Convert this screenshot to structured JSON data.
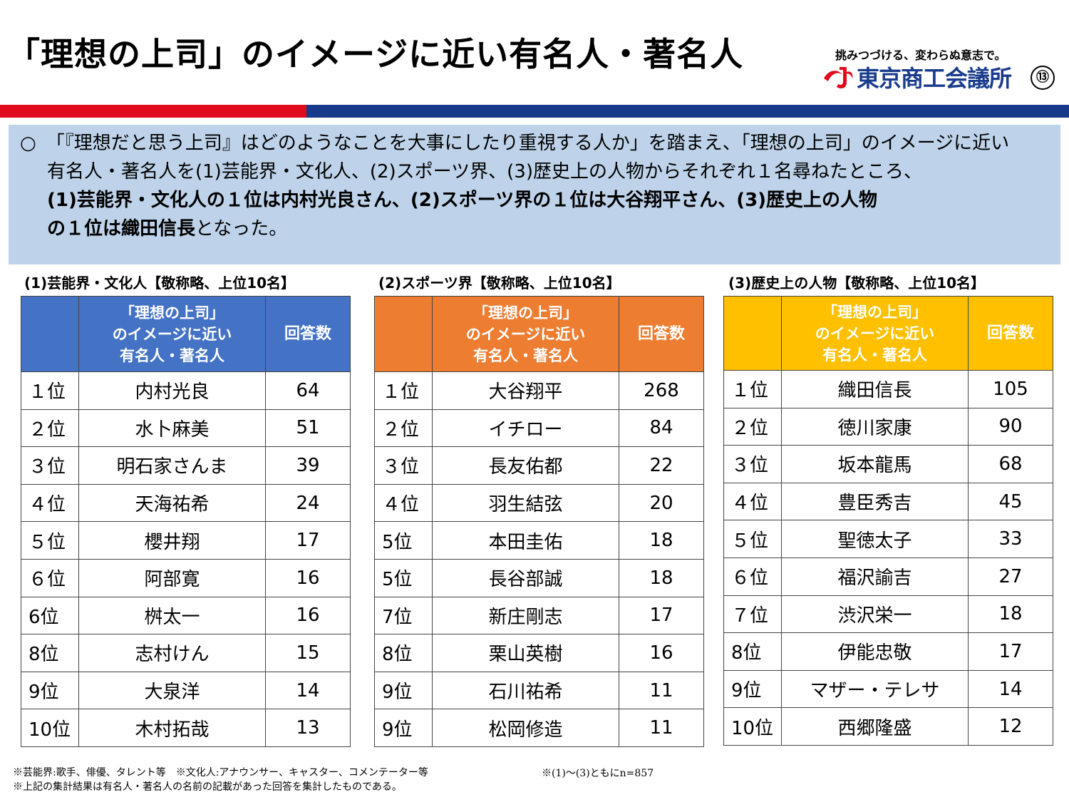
{
  "title": "「理想の上司」のイメージに近い有名人・著名人",
  "tagline": "挑みつづける、変わらぬ意志で。",
  "logo_text": "東京商工会議所",
  "page_number": "⑬",
  "colors": {
    "red": "#e00c1e",
    "blue": "#183a8a",
    "t1": "#4472c4",
    "t2": "#ed7d31",
    "t3": "#ffc000",
    "summary_bg": "#bed3ea"
  },
  "summary": {
    "bullet": "○",
    "line1": "「『理想だと思う上司』はどのようなことを大事にしたり重視する人か」を踏まえ、「理想の上司」のイメージに近い",
    "line2": "有名人・著名人を(1)芸能界・文化人、(2)スポーツ界、(3)歴史上の人物からそれぞれ１名尋ねたところ、",
    "line3_bold": "(1)芸能界・文化人の１位は内村光良さん、(2)スポーツ界の１位は大谷翔平さん、(3)歴史上の人物",
    "line4_bold": "の１位は織田信長",
    "line4_rest": "となった。"
  },
  "table_header": {
    "name_l1": "「理想の上司」",
    "name_l2": "のイメージに近い",
    "name_l3": "有名人・著名人",
    "count": "回答数"
  },
  "tables": [
    {
      "label": "(1)芸能界・文化人【敬称略、上位10名】",
      "rows": [
        {
          "rank": "１位",
          "name": "内村光良",
          "count": "64"
        },
        {
          "rank": "２位",
          "name": "水卜麻美",
          "count": "51"
        },
        {
          "rank": "３位",
          "name": "明石家さんま",
          "count": "39"
        },
        {
          "rank": "４位",
          "name": "天海祐希",
          "count": "24"
        },
        {
          "rank": "５位",
          "name": "櫻井翔",
          "count": "17"
        },
        {
          "rank": "６位",
          "name": "阿部寛",
          "count": "16"
        },
        {
          "rank": "6位",
          "name": "桝太一",
          "count": "16"
        },
        {
          "rank": "8位",
          "name": "志村けん",
          "count": "15"
        },
        {
          "rank": "9位",
          "name": "大泉洋",
          "count": "14"
        },
        {
          "rank": "10位",
          "name": "木村拓哉",
          "count": "13"
        }
      ]
    },
    {
      "label": "(2)スポーツ界【敬称略、上位10名】",
      "rows": [
        {
          "rank": "１位",
          "name": "大谷翔平",
          "count": "268"
        },
        {
          "rank": "２位",
          "name": "イチロー",
          "count": "84"
        },
        {
          "rank": "３位",
          "name": "長友佑都",
          "count": "22"
        },
        {
          "rank": "４位",
          "name": "羽生結弦",
          "count": "20"
        },
        {
          "rank": "5位",
          "name": "本田圭佑",
          "count": "18"
        },
        {
          "rank": "5位",
          "name": "長谷部誠",
          "count": "18"
        },
        {
          "rank": "7位",
          "name": "新庄剛志",
          "count": "17"
        },
        {
          "rank": "8位",
          "name": "栗山英樹",
          "count": "16"
        },
        {
          "rank": "9位",
          "name": "石川祐希",
          "count": "11"
        },
        {
          "rank": "9位",
          "name": "松岡修造",
          "count": "11"
        }
      ]
    },
    {
      "label": "(3)歴史上の人物【敬称略、上位10名】",
      "rows": [
        {
          "rank": "１位",
          "name": "織田信長",
          "count": "105"
        },
        {
          "rank": "２位",
          "name": "徳川家康",
          "count": "90"
        },
        {
          "rank": "３位",
          "name": "坂本龍馬",
          "count": "68"
        },
        {
          "rank": "４位",
          "name": "豊臣秀吉",
          "count": "45"
        },
        {
          "rank": "５位",
          "name": "聖徳太子",
          "count": "33"
        },
        {
          "rank": "６位",
          "name": "福沢諭吉",
          "count": "27"
        },
        {
          "rank": "７位",
          "name": "渋沢栄一",
          "count": "18"
        },
        {
          "rank": "8位",
          "name": "伊能忠敬",
          "count": "17"
        },
        {
          "rank": "9位",
          "name": "マザー・テレサ",
          "count": "14"
        },
        {
          "rank": "10位",
          "name": "西郷隆盛",
          "count": "12"
        }
      ]
    }
  ],
  "notes": {
    "line1": "※芸能界:歌手、俳優、タレント等　※文化人:アナウンサー、キャスター、コメンテーター等",
    "line1_right": "※(1)～(3)ともにn=857",
    "line2": "※上記の集計結果は有名人・著名人の名前の記載があった回答を集計したものである。"
  }
}
